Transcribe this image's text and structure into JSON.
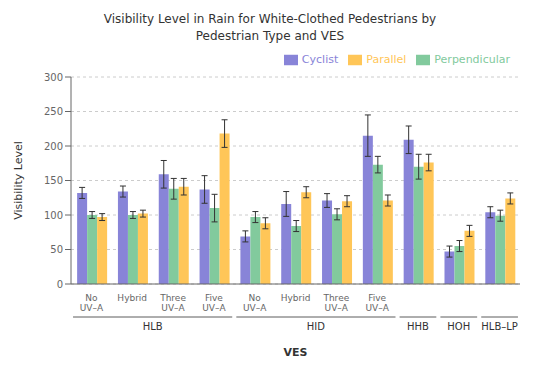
{
  "chart_data": {
    "type": "bar",
    "title": "Visibility Level in Rain for White-Clothed Pedestrians by\nPedestrian Type and VES",
    "xlabel": "VES",
    "ylabel": "Visibility Level",
    "categories": [
      "No\nUV–A",
      "Hybrid",
      "Three\nUV–A",
      "Five\nUV–A",
      "No\nUV–A",
      "Hybrid",
      "Three\nUV–A",
      "Five\nUV–A",
      null,
      null,
      null
    ],
    "category_groups": [
      "HLB",
      "HLB",
      "HLB",
      "HLB",
      "HID",
      "HID",
      "HID",
      "HID",
      "HHB",
      "HOH",
      "HLB–LP"
    ],
    "series": [
      {
        "name": "Cyclist",
        "values": [
          132,
          134,
          159,
          137,
          69,
          116,
          121,
          215,
          209,
          47,
          104
        ],
        "errors": [
          8,
          8,
          20,
          20,
          8,
          18,
          10,
          30,
          20,
          8,
          8
        ]
      },
      {
        "name": "Perpendicular",
        "values": [
          100,
          100,
          138,
          110,
          97,
          84,
          101,
          173,
          170,
          55,
          99
        ],
        "errors": [
          5,
          5,
          15,
          20,
          8,
          8,
          8,
          12,
          18,
          8,
          8
        ]
      },
      {
        "name": "Parallel",
        "values": [
          97,
          102,
          141,
          218,
          88,
          133,
          120,
          121,
          176,
          77,
          124
        ],
        "errors": [
          5,
          5,
          12,
          20,
          8,
          8,
          8,
          8,
          12,
          8,
          8
        ]
      }
    ],
    "ylim": [
      0,
      300
    ],
    "yticks": [
      0,
      50,
      100,
      150,
      200,
      250,
      300
    ],
    "grid": true,
    "legend": "upper right"
  }
}
